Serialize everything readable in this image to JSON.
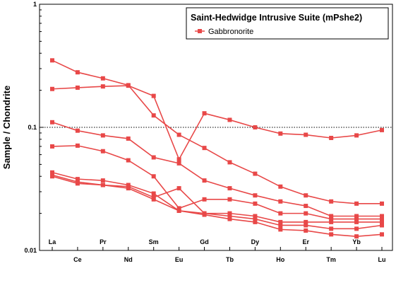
{
  "chart_data": {
    "type": "line",
    "title": "",
    "xlabel": "",
    "ylabel": "Sample / Chondrite",
    "y_scale": "log",
    "ylim": [
      0.01,
      1
    ],
    "y_ticks": [
      {
        "value": 1,
        "label": "1"
      },
      {
        "value": 0.1,
        "label": "0.1"
      },
      {
        "value": 0.01,
        "label": "0.01"
      }
    ],
    "categories": [
      "La",
      "Ce",
      "Pr",
      "Nd",
      "Sm",
      "Eu",
      "Gd",
      "Tb",
      "Dy",
      "Ho",
      "Er",
      "Tm",
      "Yb",
      "Lu"
    ],
    "reference_line": {
      "value": 0.1,
      "style": "dotted"
    },
    "legend": {
      "title": "Saint-Hedwidge Intrusive Suite (mPshe2)",
      "placement": "top-right",
      "entries": [
        {
          "label": "Gabbronorite",
          "color": "#e84848",
          "marker": "square"
        }
      ]
    },
    "series_color": "#e84848",
    "series": [
      {
        "values": [
          0.35,
          0.28,
          0.25,
          0.22,
          0.125,
          0.087,
          0.068,
          0.052,
          0.042,
          0.033,
          0.028,
          0.025,
          0.024,
          0.024
        ]
      },
      {
        "values": [
          0.205,
          0.21,
          0.215,
          0.218,
          0.18,
          0.055,
          0.13,
          0.115,
          0.1,
          0.089,
          0.087,
          0.082,
          0.086,
          0.095
        ]
      },
      {
        "values": [
          0.11,
          0.094,
          0.086,
          0.081,
          0.057,
          0.051,
          0.037,
          0.032,
          0.028,
          0.025,
          0.023,
          0.019,
          0.019,
          0.019
        ]
      },
      {
        "values": [
          0.07,
          0.071,
          0.064,
          0.054,
          0.04,
          0.022,
          0.026,
          0.026,
          0.024,
          0.02,
          0.02,
          0.018,
          0.018,
          0.018
        ]
      },
      {
        "values": [
          0.043,
          0.038,
          0.037,
          0.034,
          0.029,
          0.021,
          0.02,
          0.02,
          0.019,
          0.017,
          0.017,
          0.017,
          0.017,
          0.017
        ]
      },
      {
        "values": [
          0.041,
          0.036,
          0.034,
          0.033,
          0.027,
          0.032,
          0.02,
          0.019,
          0.018,
          0.016,
          0.016,
          0.015,
          0.015,
          0.016
        ]
      },
      {
        "values": [
          0.04,
          0.035,
          0.034,
          0.032,
          0.026,
          0.021,
          0.0195,
          0.018,
          0.017,
          0.0148,
          0.0145,
          0.0135,
          0.013,
          0.0135
        ]
      }
    ]
  }
}
